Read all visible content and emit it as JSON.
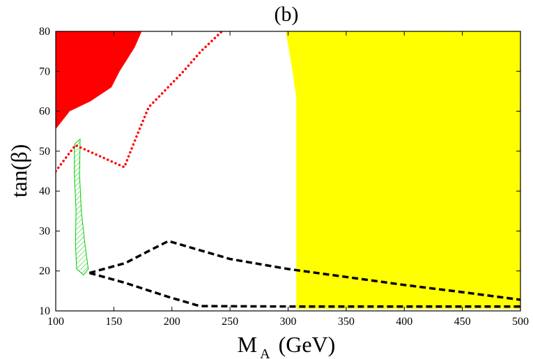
{
  "chart_data": {
    "type": "line",
    "title": "(b)",
    "xlabel": {
      "main": "M",
      "subscript": "A",
      "suffix": "(GeV)"
    },
    "ylabel": "tan(β)",
    "xlim": [
      100,
      500
    ],
    "ylim": [
      10,
      80
    ],
    "xticks": [
      100,
      150,
      200,
      250,
      300,
      350,
      400,
      450,
      500
    ],
    "yticks": [
      10,
      20,
      30,
      40,
      50,
      60,
      70,
      80
    ],
    "grid": false,
    "colors": {
      "red_region": "#ff0000",
      "yellow_region": "#ffff00",
      "green_region": "#00cc00",
      "red_dotted": "#ff0000",
      "black_dashed": "#000000"
    },
    "regions": [
      {
        "id": "red-region",
        "fill": "#ff0000",
        "points": [
          [
            100,
            80
          ],
          [
            174,
            80
          ],
          [
            168,
            76
          ],
          [
            155,
            70
          ],
          [
            148,
            66
          ],
          [
            130,
            62.5
          ],
          [
            112,
            60
          ],
          [
            100,
            55.5
          ]
        ]
      },
      {
        "id": "yellow-region",
        "fill": "#ffff00",
        "points": [
          [
            298,
            80
          ],
          [
            500,
            80
          ],
          [
            500,
            10.5
          ],
          [
            307,
            10.5
          ],
          [
            307,
            63.5
          ],
          [
            303,
            71.5
          ]
        ]
      }
    ],
    "series": [
      {
        "id": "red-dotted-curve",
        "style": "dotted",
        "color": "#ff0000",
        "points": [
          [
            100,
            45
          ],
          [
            117,
            51.5
          ],
          [
            159,
            46
          ],
          [
            170,
            54
          ],
          [
            180,
            61
          ],
          [
            190,
            64
          ],
          [
            210,
            70
          ],
          [
            225,
            75
          ],
          [
            243,
            80
          ]
        ]
      },
      {
        "id": "black-dashed-upper",
        "style": "dashed",
        "color": "#000000",
        "points": [
          [
            129,
            19.5
          ],
          [
            160,
            22
          ],
          [
            180,
            25
          ],
          [
            197,
            27.5
          ],
          [
            250,
            23
          ],
          [
            300,
            20.5
          ],
          [
            350,
            18.5
          ],
          [
            400,
            16.5
          ],
          [
            450,
            14.7
          ],
          [
            500,
            12.8
          ]
        ]
      },
      {
        "id": "black-dashed-lower",
        "style": "dashed",
        "color": "#000000",
        "points": [
          [
            129,
            19.5
          ],
          [
            160,
            17
          ],
          [
            197,
            13.5
          ],
          [
            224,
            11.2
          ],
          [
            300,
            11.1
          ],
          [
            400,
            11.1
          ],
          [
            500,
            11.1
          ]
        ]
      }
    ],
    "hatched_region": {
      "id": "green-hatched-region",
      "color": "#00cc00",
      "points": [
        [
          117,
          52
        ],
        [
          121,
          53
        ],
        [
          120.5,
          44
        ],
        [
          122,
          35
        ],
        [
          125,
          27
        ],
        [
          128,
          20.5
        ],
        [
          124,
          19
        ],
        [
          118,
          20.5
        ],
        [
          117,
          27
        ],
        [
          117.5,
          35
        ],
        [
          116,
          44
        ],
        [
          116,
          51.5
        ]
      ]
    }
  }
}
